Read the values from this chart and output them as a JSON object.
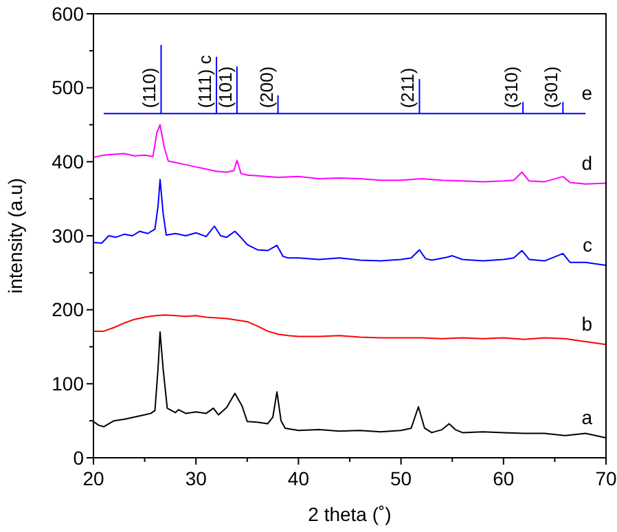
{
  "chart_data": {
    "type": "line",
    "xlabel": "2 theta (˚)",
    "ylabel": "intensity (a.u)",
    "xlim": [
      20,
      70
    ],
    "ylim": [
      0,
      600
    ],
    "xticks": [
      20,
      {
        "value": 25,
        "label": null
      },
      30,
      {
        "value": 35,
        "label": null
      },
      40,
      {
        "value": 45,
        "label": null
      },
      50,
      {
        "value": 55,
        "label": null
      },
      60,
      {
        "value": 65,
        "label": null
      },
      70
    ],
    "yticks": [
      0,
      {
        "value": 50,
        "label": null
      },
      100,
      {
        "value": 150,
        "label": null
      },
      200,
      {
        "value": 250,
        "label": null
      },
      300,
      {
        "value": 350,
        "label": null
      },
      400,
      {
        "value": 450,
        "label": null
      },
      500,
      {
        "value": 550,
        "label": null
      },
      600
    ],
    "grid": false,
    "marker": "none",
    "line_style": "solid",
    "annotations": [
      {
        "text": "(110)",
        "x": 26.6,
        "y": 465
      },
      {
        "text": "(111) c",
        "x": 32,
        "y": 465
      },
      {
        "text": "(101)",
        "x": 34,
        "y": 465
      },
      {
        "text": "(200)",
        "x": 38,
        "y": 465
      },
      {
        "text": "(211)",
        "x": 51.8,
        "y": 465
      },
      {
        "text": "(310)",
        "x": 61.9,
        "y": 465
      },
      {
        "text": "(301)",
        "x": 65.8,
        "y": 465
      }
    ],
    "series": [
      {
        "name": "a",
        "color": "#000000",
        "x": [
          20,
          20.5,
          21,
          22,
          23,
          24,
          25,
          25.6,
          26,
          26.3,
          26.5,
          26.8,
          27.2,
          28,
          28.3,
          29,
          30,
          31,
          31.7,
          32.2,
          33,
          33.8,
          34.5,
          35,
          36,
          37,
          37.5,
          37.9,
          38.3,
          38.7,
          40,
          42,
          44,
          46,
          48,
          50,
          51,
          51.7,
          52.3,
          53,
          54,
          54.7,
          55.3,
          56,
          58,
          60,
          62,
          64,
          66,
          68,
          70
        ],
        "values": [
          49,
          44,
          42,
          50,
          52,
          55,
          58,
          60,
          64,
          120,
          170,
          120,
          67,
          61,
          65,
          60,
          62,
          60,
          67,
          58,
          68,
          87,
          70,
          49,
          48,
          46,
          55,
          89,
          50,
          40,
          37,
          38,
          36,
          37,
          35,
          37,
          40,
          69,
          40,
          34,
          38,
          46,
          38,
          34,
          35,
          34,
          33,
          33,
          30,
          33,
          27
        ]
      },
      {
        "name": "b",
        "color": "#ff0000",
        "x": [
          20,
          21,
          22,
          23,
          24,
          25,
          26,
          27,
          28,
          29,
          30,
          31,
          32,
          33,
          34,
          35,
          36,
          37,
          38,
          39,
          40,
          42,
          44,
          46,
          48,
          50,
          52,
          54,
          56,
          58,
          60,
          62,
          64,
          66,
          68,
          70
        ],
        "values": [
          171,
          171,
          176,
          182,
          187,
          190,
          192,
          193,
          192,
          191,
          192,
          190,
          189,
          188,
          186,
          184,
          178,
          171,
          167,
          165,
          164,
          164,
          165,
          163,
          162,
          162,
          162,
          161,
          162,
          161,
          162,
          160,
          162,
          161,
          157,
          153
        ]
      },
      {
        "name": "c",
        "color": "#0000ff",
        "x": [
          20,
          20.8,
          21.5,
          22.2,
          23,
          23.8,
          24.5,
          25.3,
          26,
          26.3,
          26.5,
          26.8,
          27.1,
          28,
          29,
          30,
          31,
          31.8,
          32.4,
          33,
          33.8,
          34.5,
          35,
          36,
          37,
          37.9,
          38.5,
          39,
          40,
          42,
          44,
          46,
          48,
          50,
          51,
          51.8,
          52.4,
          53,
          54.5,
          55,
          56,
          58,
          60,
          61,
          61.8,
          62.5,
          64,
          65.8,
          66.5,
          68,
          70
        ],
        "values": [
          291,
          290,
          300,
          298,
          302,
          300,
          306,
          303,
          309,
          340,
          376,
          330,
          301,
          303,
          300,
          304,
          299,
          313,
          300,
          298,
          306,
          296,
          288,
          281,
          280,
          287,
          272,
          270,
          270,
          268,
          270,
          267,
          266,
          268,
          270,
          281,
          269,
          267,
          271,
          273,
          268,
          266,
          268,
          270,
          280,
          268,
          266,
          276,
          264,
          264,
          260
        ]
      },
      {
        "name": "d",
        "color": "#ff00ff",
        "x": [
          20,
          21,
          22,
          23,
          24,
          25,
          25.8,
          26.2,
          26.5,
          26.9,
          27.3,
          28,
          29,
          30,
          31,
          32,
          33,
          33.7,
          34,
          34.4,
          35,
          36,
          38,
          40,
          42,
          44,
          46,
          48,
          50,
          52,
          54,
          56,
          58,
          60,
          61,
          61.8,
          62.5,
          64,
          65.8,
          66.5,
          68,
          70
        ],
        "values": [
          406,
          409,
          410,
          411,
          408,
          409,
          407,
          440,
          450,
          420,
          401,
          399,
          396,
          393,
          390,
          387,
          386,
          388,
          402,
          384,
          382,
          381,
          379,
          380,
          377,
          378,
          377,
          375,
          375,
          377,
          375,
          374,
          373,
          374,
          375,
          386,
          374,
          373,
          380,
          372,
          370,
          371
        ]
      },
      {
        "name": "e",
        "color": "#0000ff",
        "x": [
          21,
          26.6,
          26.6,
          26.6,
          32,
          32,
          32,
          34,
          34,
          34,
          38,
          38,
          38,
          51.8,
          51.8,
          51.8,
          61.9,
          61.9,
          61.9,
          65.8,
          65.8,
          65.8,
          68
        ],
        "values": [
          465,
          465,
          557,
          465,
          465,
          541,
          465,
          465,
          528,
          465,
          465,
          489,
          465,
          465,
          511,
          465,
          465,
          480,
          465,
          465,
          480,
          465,
          465
        ]
      }
    ]
  }
}
